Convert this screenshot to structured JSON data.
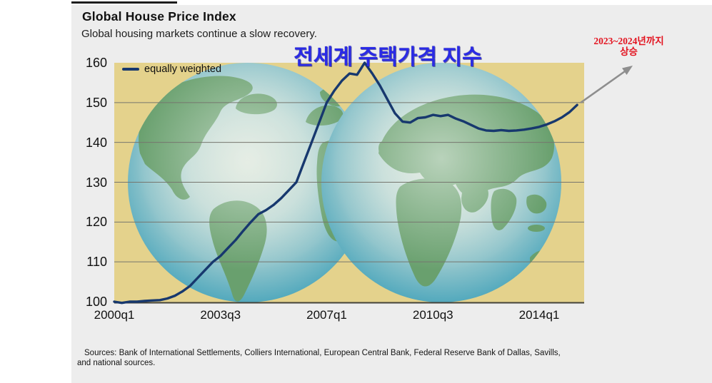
{
  "header": {
    "title": "Global House Price Index",
    "subtitle": "Global housing markets continue a slow recovery."
  },
  "annotations": {
    "korean_title": "전세계 주택가격 지수",
    "korean_title_color": "#2a2ae6",
    "korean_note_line1": "2023~2024년까지",
    "korean_note_line2": "상승",
    "korean_note_color": "#e31420",
    "arrow_color": "#8e8e8e"
  },
  "legend": {
    "label": "equally weighted",
    "line_color": "#17386e"
  },
  "sources": {
    "line1": "Sources: Bank of International Settlements, Colliers International, European Central Bank, Federal Reserve Bank of Dallas, Savills,",
    "line2": "and national sources."
  },
  "chart_data": {
    "type": "line",
    "title": "Global House Price Index",
    "xlabel": "",
    "ylabel": "",
    "ylim": [
      100,
      160
    ],
    "grid": true,
    "plot_bg_color": "#e4d28c",
    "gridline_color": "#76766e",
    "line_color": "#17386e",
    "y_ticks": [
      100,
      110,
      120,
      130,
      140,
      150,
      160
    ],
    "x_ticks": [
      {
        "label": "2000q1",
        "quarter_index": 0
      },
      {
        "label": "2003q3",
        "quarter_index": 14
      },
      {
        "label": "2007q1",
        "quarter_index": 28
      },
      {
        "label": "2010q3",
        "quarter_index": 42
      },
      {
        "label": "2014q1",
        "quarter_index": 56
      }
    ],
    "series": [
      {
        "name": "equally weighted",
        "x_start": "2000q1",
        "x_step": "quarter",
        "values": [
          100.0,
          99.7,
          100.0,
          100.0,
          100.2,
          100.3,
          100.4,
          100.8,
          101.5,
          102.6,
          104.0,
          106.0,
          108.0,
          110.0,
          111.5,
          113.5,
          115.5,
          117.8,
          120.0,
          122.0,
          123.0,
          124.3,
          126.0,
          128.0,
          130.0,
          135.0,
          140.0,
          145.0,
          150.0,
          153.0,
          155.5,
          157.3,
          157.0,
          160.0,
          157.3,
          154.3,
          150.8,
          147.3,
          145.2,
          145.0,
          146.1,
          146.3,
          146.9,
          146.6,
          146.9,
          146.0,
          145.3,
          144.4,
          143.5,
          143.0,
          142.9,
          143.1,
          142.9,
          143.0,
          143.2,
          143.5,
          143.9,
          144.5,
          145.3,
          146.3,
          147.6,
          149.4
        ]
      }
    ]
  }
}
